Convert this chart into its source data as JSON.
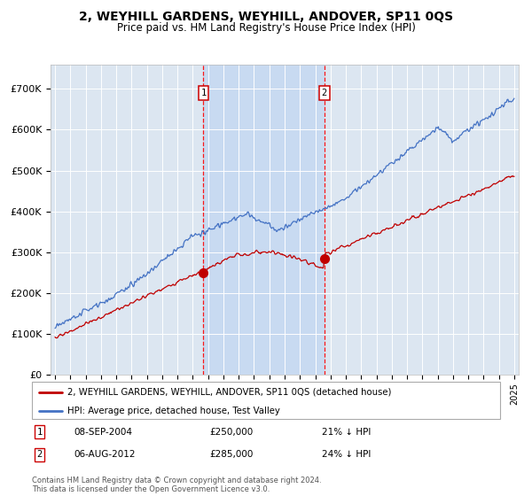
{
  "title": "2, WEYHILL GARDENS, WEYHILL, ANDOVER, SP11 0QS",
  "subtitle": "Price paid vs. HM Land Registry's House Price Index (HPI)",
  "ylabel_ticks": [
    "£0",
    "£100K",
    "£200K",
    "£300K",
    "£400K",
    "£500K",
    "£600K",
    "£700K"
  ],
  "ytick_values": [
    0,
    100000,
    200000,
    300000,
    400000,
    500000,
    600000,
    700000
  ],
  "ylim": [
    0,
    760000
  ],
  "xlim_start": 1994.7,
  "xlim_end": 2025.3,
  "sale1_x": 2004.69,
  "sale1_y": 250000,
  "sale1_label": "1",
  "sale2_x": 2012.6,
  "sale2_y": 285000,
  "sale2_label": "2",
  "legend_line1": "2, WEYHILL GARDENS, WEYHILL, ANDOVER, SP11 0QS (detached house)",
  "legend_line2": "HPI: Average price, detached house, Test Valley",
  "annotation1_date": "08-SEP-2004",
  "annotation1_price": "£250,000",
  "annotation1_hpi": "21% ↓ HPI",
  "annotation2_date": "06-AUG-2012",
  "annotation2_price": "£285,000",
  "annotation2_hpi": "24% ↓ HPI",
  "footnote": "Contains HM Land Registry data © Crown copyright and database right 2024.\nThis data is licensed under the Open Government Licence v3.0.",
  "hpi_color": "#4472c4",
  "price_color": "#c00000",
  "background_color": "#dce6f1",
  "shade_color": "#c5d9f1",
  "grid_color": "#ffffff",
  "vline_color": "#ff0000"
}
